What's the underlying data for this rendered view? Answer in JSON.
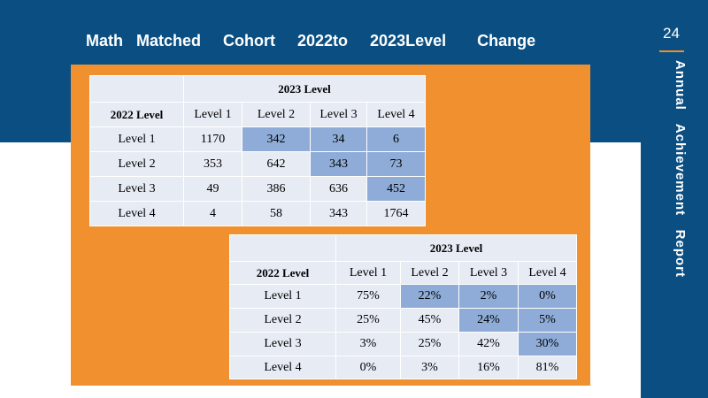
{
  "slide": {
    "title": "Math   Matched     Cohort     2022to     2023Level       Change",
    "page_number": "24",
    "side_title": "Annual   Achievement   Report"
  },
  "count_table": {
    "group_header": "2023  Level",
    "row_header": "2022  Level",
    "columns": [
      "Level 1",
      "Level 2",
      "Level 3",
      "Level 4"
    ],
    "rows": [
      {
        "label": "Level 1",
        "values": [
          "1170",
          "342",
          "34",
          "6"
        ]
      },
      {
        "label": "Level 2",
        "values": [
          "353",
          "642",
          "343",
          "73"
        ]
      },
      {
        "label": "Level 3",
        "values": [
          "49",
          "386",
          "636",
          "452"
        ]
      },
      {
        "label": "Level 4",
        "values": [
          "4",
          "58",
          "343",
          "1764"
        ]
      }
    ]
  },
  "percent_table": {
    "group_header": "2023  Level",
    "row_header": "2022  Level",
    "columns": [
      "Level 1",
      "Level 2",
      "Level 3",
      "Level 4"
    ],
    "rows": [
      {
        "label": "Level 1",
        "values": [
          "75%",
          "22%",
          "2%",
          "0%"
        ]
      },
      {
        "label": "Level 2",
        "values": [
          "25%",
          "45%",
          "24%",
          "5%"
        ]
      },
      {
        "label": "Level 3",
        "values": [
          "3%",
          "25%",
          "42%",
          "30%"
        ]
      },
      {
        "label": "Level 4",
        "values": [
          "0%",
          "3%",
          "16%",
          "81%"
        ]
      }
    ]
  },
  "colors": {
    "band": "#0b4f82",
    "orange_panel": "#f0902e",
    "cell": "#e7ebf4",
    "highlight": "#8eacd7"
  }
}
